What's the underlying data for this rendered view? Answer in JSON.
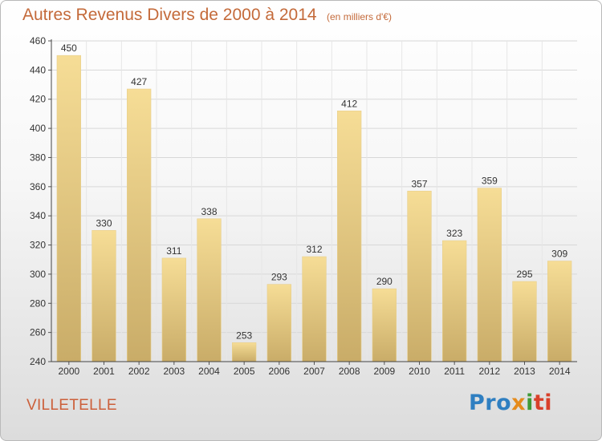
{
  "header": {
    "title": "Autres Revenus Divers de 2000 à 2014",
    "subtitle": "(en milliers d'€)"
  },
  "footer": {
    "commune": "VILLETELLE",
    "logo_parts": [
      "Pro",
      "x",
      "i",
      "ti"
    ]
  },
  "colors": {
    "title": "#c46a3a",
    "bar_light": "#f6dd96",
    "bar_dark": "#c9ac68",
    "grid": "#d8d8d8"
  },
  "chart_data": {
    "type": "bar",
    "title": "Autres Revenus Divers de 2000 à 2014",
    "xlabel": "",
    "ylabel": "",
    "categories": [
      "2000",
      "2001",
      "2002",
      "2003",
      "2004",
      "2005",
      "2006",
      "2007",
      "2008",
      "2009",
      "2010",
      "2011",
      "2012",
      "2013",
      "2014"
    ],
    "values": [
      450,
      330,
      427,
      311,
      338,
      253,
      293,
      312,
      412,
      290,
      357,
      323,
      359,
      295,
      309
    ],
    "ylim": [
      240,
      460
    ],
    "yticks": [
      240,
      260,
      280,
      300,
      320,
      340,
      360,
      380,
      400,
      420,
      440,
      460
    ],
    "grid": true,
    "legend": "none"
  }
}
